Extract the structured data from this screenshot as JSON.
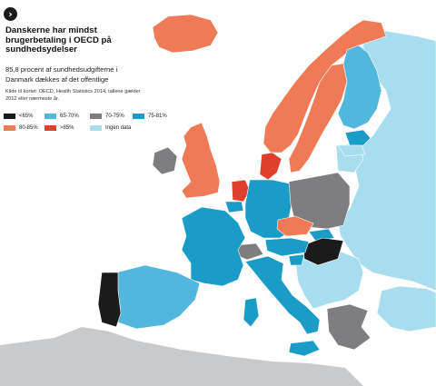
{
  "title": "Danskerne har mindst brugerbetaling i OECD på sundhedsydelser",
  "subtitle": "85,8 procent af sundhedsudgifterne i Danmark dækkes af det offentlige",
  "source": "Kilde til kortet: OECD, Health Statistics 2014, tallene gælder 2012 eller nærmeste år.",
  "nav_icon": "chevron-right-icon",
  "colors": {
    "lt65": "#1b1b1b",
    "r65_70": "#52b6dd",
    "r70_75": "#7e7e80",
    "r75_81": "#1a9bc8",
    "r80_85": "#f07a55",
    "gt85": "#e13f2e",
    "nodata": "#a8dcef",
    "nonmember": "#c9cacc",
    "sea": "#ffffff"
  },
  "legend": [
    {
      "label": "<65%",
      "color": "#1b1b1b"
    },
    {
      "label": "65-70%",
      "color": "#52b6dd"
    },
    {
      "label": "70-75%",
      "color": "#7e7e80"
    },
    {
      "label": "75-81%",
      "color": "#1a9bc8"
    },
    {
      "label": "80-85%",
      "color": "#f07a55"
    },
    {
      "label": ">85%",
      "color": "#e13f2e"
    },
    {
      "label": "Ingen data",
      "color": "#a8dcef"
    }
  ]
}
